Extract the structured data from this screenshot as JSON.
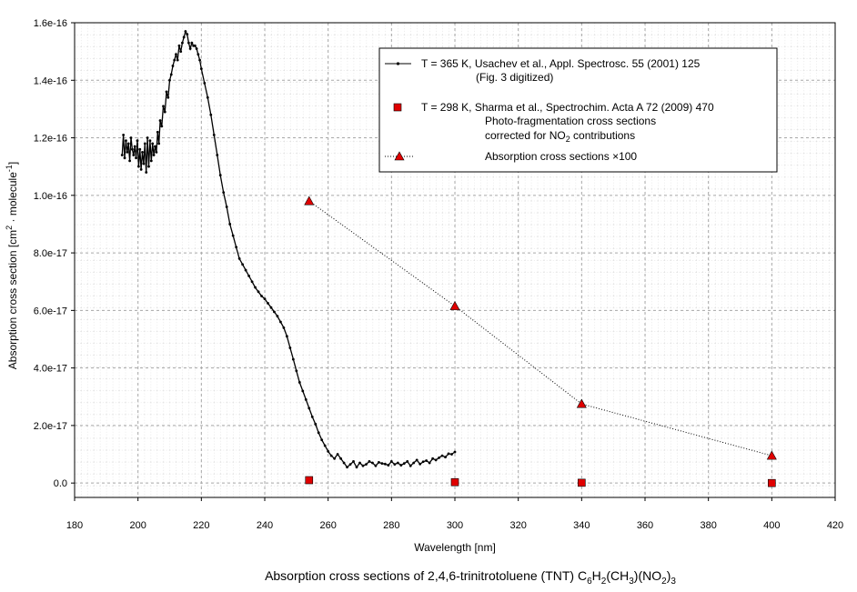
{
  "chart_data": {
    "type": "scatter",
    "caption": {
      "pre": "Absorption cross sections of 2,4,6-trinitrotoluene (TNT) C",
      "s1": "6",
      "m1": "H",
      "s2": "2",
      "m2": "(CH",
      "s3": "3",
      "m3": ")(NO",
      "s4": "2",
      "m4": ")",
      "s5": "3"
    },
    "xlabel": "Wavelength [nm]",
    "ylabel": {
      "pre": "Absorption cross section [cm",
      "sup1": "2",
      "mid": " · molecule",
      "sup2": "-1",
      "post": "]"
    },
    "xlim": [
      180,
      420
    ],
    "ylim": [
      -5e-18,
      1.6e-16
    ],
    "x_ticks": [
      180,
      200,
      220,
      240,
      260,
      280,
      300,
      320,
      340,
      360,
      380,
      400,
      420
    ],
    "y_ticks": [
      {
        "v": 0,
        "label": "0.0"
      },
      {
        "v": 2e-17,
        "label": "2.0e-17"
      },
      {
        "v": 4e-17,
        "label": "4.0e-17"
      },
      {
        "v": 6e-17,
        "label": "6.0e-17"
      },
      {
        "v": 8e-17,
        "label": "8.0e-17"
      },
      {
        "v": 1e-16,
        "label": "1.0e-16"
      },
      {
        "v": 1.2e-16,
        "label": "1.2e-16"
      },
      {
        "v": 1.4e-16,
        "label": "1.4e-16"
      },
      {
        "v": 1.6e-16,
        "label": "1.6e-16"
      }
    ],
    "grid": true,
    "legend_position": "top-right",
    "legend": [
      {
        "lines": [
          "T = 365 K, Usachev et al., Appl. Spectrosc. 55 (2001) 125",
          "(Fig. 3 digitized)"
        ]
      },
      {
        "lines": [
          "T = 298 K, Sharma et al., Spectrochim. Acta A 72 (2009) 470",
          "Photo-fragmentation cross sections"
        ],
        "line3": {
          "pre": "corrected for NO",
          "sub": "2",
          "post": " contributions"
        }
      },
      {
        "lines": [
          "Absorption cross sections ×100"
        ]
      }
    ],
    "series": [
      {
        "marker": "small-dot",
        "line": "solid",
        "color": "#000000",
        "x": [
          195.0,
          195.4,
          195.8,
          196.2,
          196.6,
          197.0,
          197.4,
          197.8,
          198.2,
          198.6,
          199.0,
          199.4,
          199.8,
          200.2,
          200.6,
          201.0,
          201.4,
          201.8,
          202.2,
          202.6,
          203.0,
          203.4,
          203.8,
          204.2,
          204.6,
          205.0,
          205.4,
          205.8,
          206.2,
          206.6,
          207.0,
          207.5,
          208.0,
          208.5,
          209.0,
          209.5,
          210.0,
          210.5,
          211.0,
          211.5,
          212.0,
          212.5,
          213.0,
          213.5,
          214.0,
          214.5,
          215.0,
          215.5,
          216.0,
          216.5,
          217.0,
          217.5,
          218.0,
          218.5,
          219.0,
          219.5,
          220.0,
          221.0,
          222.0,
          223.0,
          224.0,
          225.0,
          226.0,
          227.0,
          228.0,
          229.0,
          230.0,
          231.0,
          232.0,
          233.0,
          234.0,
          235.0,
          236.0,
          237.0,
          238.0,
          239.0,
          240.0,
          241.0,
          242.0,
          243.0,
          244.0,
          245.0,
          246.0,
          247.0,
          248.0,
          249.0,
          250.0,
          251.0,
          252.0,
          253.0,
          254.0,
          255.0,
          256.0,
          257.0,
          258.0,
          259.0,
          260.0,
          261.0,
          262.0,
          263.0,
          264.0,
          265.0,
          266.0,
          267.0,
          268.0,
          269.0,
          270.0,
          271.0,
          272.0,
          273.0,
          274.0,
          275.0,
          276.0,
          277.0,
          278.0,
          279.0,
          280.0,
          281.0,
          282.0,
          283.0,
          284.0,
          285.0,
          286.0,
          287.0,
          288.0,
          289.0,
          290.0,
          291.0,
          292.0,
          293.0,
          294.0,
          295.0,
          296.0,
          297.0,
          298.0,
          299.0,
          300.0
        ],
        "y": [
          1.14e-16,
          1.21e-16,
          1.13e-16,
          1.19e-16,
          1.15e-16,
          1.18e-16,
          1.12e-16,
          1.2e-16,
          1.16e-16,
          1.14e-16,
          1.17e-16,
          1.13e-16,
          1.19e-16,
          1.1e-16,
          1.16e-16,
          1.09e-16,
          1.15e-16,
          1.11e-16,
          1.18e-16,
          1.08e-16,
          1.2e-16,
          1.1e-16,
          1.19e-16,
          1.12e-16,
          1.18e-16,
          1.14e-16,
          1.17e-16,
          1.15e-16,
          1.22e-16,
          1.18e-16,
          1.26e-16,
          1.24e-16,
          1.31e-16,
          1.29e-16,
          1.36e-16,
          1.34e-16,
          1.4e-16,
          1.42e-16,
          1.45e-16,
          1.47e-16,
          1.49e-16,
          1.47e-16,
          1.52e-16,
          1.5e-16,
          1.53e-16,
          1.55e-16,
          1.57e-16,
          1.56e-16,
          1.53e-16,
          1.51e-16,
          1.53e-16,
          1.52e-16,
          1.52e-16,
          1.51e-16,
          1.49e-16,
          1.47e-16,
          1.44e-16,
          1.39e-16,
          1.34e-16,
          1.28e-16,
          1.21e-16,
          1.14e-16,
          1.07e-16,
          1.01e-16,
          9.6e-17,
          9e-17,
          8.6e-17,
          8.2e-17,
          7.8e-17,
          7.6e-17,
          7.4e-17,
          7.2e-17,
          7e-17,
          6.8e-17,
          6.65e-17,
          6.5e-17,
          6.4e-17,
          6.25e-17,
          6.1e-17,
          5.95e-17,
          5.8e-17,
          5.6e-17,
          5.4e-17,
          5.1e-17,
          4.7e-17,
          4.3e-17,
          3.9e-17,
          3.5e-17,
          3.2e-17,
          2.9e-17,
          2.6e-17,
          2.3e-17,
          2.05e-17,
          1.75e-17,
          1.5e-17,
          1.3e-17,
          1.1e-17,
          9.5e-18,
          8.5e-18,
          1e-17,
          8.5e-18,
          7e-18,
          5.5e-18,
          6.5e-18,
          7.5e-18,
          5.5e-18,
          7e-18,
          6e-18,
          6.5e-18,
          7.5e-18,
          7e-18,
          6e-18,
          7.2e-18,
          6.8e-18,
          6.6e-18,
          6.2e-18,
          7.5e-18,
          6.5e-18,
          7e-18,
          6.2e-18,
          6.8e-18,
          7.5e-18,
          6e-18,
          7e-18,
          8e-18,
          6.6e-18,
          7.4e-18,
          7.8e-18,
          7e-18,
          8.5e-18,
          8e-18,
          8.8e-18,
          9.5e-18,
          9e-18,
          1.02e-17,
          1e-17,
          1.08e-17
        ]
      },
      {
        "marker": "square",
        "line": "none",
        "color": "#e00000",
        "x": [
          254,
          300,
          340,
          400
        ],
        "y": [
          1e-18,
          3e-19,
          1e-19,
          0.0
        ]
      },
      {
        "marker": "triangle",
        "line": "dotted",
        "color": "#e00000",
        "x": [
          254,
          300,
          340,
          400
        ],
        "y": [
          9.8e-17,
          6.15e-17,
          2.75e-17,
          9.5e-18
        ]
      }
    ]
  }
}
